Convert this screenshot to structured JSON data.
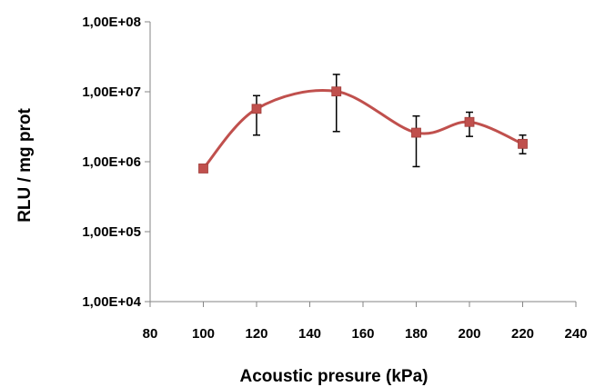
{
  "chart_data": {
    "type": "line",
    "title": "",
    "xlabel": "Acoustic presure (kPa)",
    "ylabel": "RLU / mg prot",
    "yscale": "log",
    "xlim": [
      80,
      240
    ],
    "ylim": [
      10000,
      100000000
    ],
    "x_ticks": [
      80,
      100,
      120,
      140,
      160,
      180,
      200,
      220,
      240
    ],
    "y_ticks": [
      10000,
      100000,
      1000000,
      10000000,
      100000000
    ],
    "y_tick_labels": [
      "1,00E+04",
      "1,00E+05",
      "1,00E+06",
      "1,00E+07",
      "1,00E+08"
    ],
    "grid": false,
    "legend": "none",
    "line_style": "smoothed",
    "series": [
      {
        "color": "#C0504D",
        "marker": "square",
        "x": [
          100,
          120,
          150,
          180,
          200,
          220
        ],
        "y": [
          800000,
          5700000,
          10100000,
          2600000,
          3700000,
          1800000
        ],
        "error_upper": [
          null,
          8800000,
          17700000,
          4500000,
          5100000,
          2400000
        ],
        "error_lower": [
          null,
          2400000,
          2700000,
          850000,
          2300000,
          1300000
        ]
      }
    ]
  }
}
